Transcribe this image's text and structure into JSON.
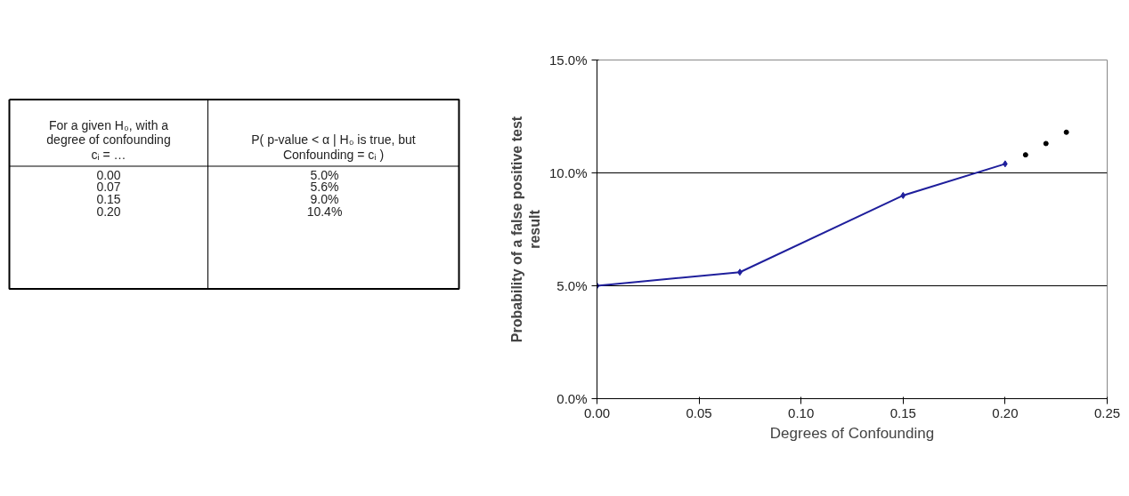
{
  "chart_data": [
    {
      "type": "other",
      "annotations": [
        "For a given H₀, with a degree of confounding cᵢ = …",
        "P( p-value < α | H₀ is true, but Confounding = cᵢ )",
        "0.00",
        "5.0%",
        "0.07",
        "5.6%",
        "0.15",
        "9.0%",
        "0.20",
        "10.4%"
      ]
    },
    {
      "type": "line",
      "xlabel": "Degrees of Confounding",
      "ylabel": "Probability of a false positive test result",
      "xlim": [
        0,
        0.25
      ],
      "xticks": [
        {
          "value": 0,
          "label": "0.00"
        },
        {
          "value": 0.05,
          "label": "0.05"
        },
        {
          "value": 0.1,
          "label": "0.10"
        },
        {
          "value": 0.15,
          "label": "0.15"
        },
        {
          "value": 0.2,
          "label": "0.20"
        },
        {
          "value": 0.25,
          "label": "0.25"
        }
      ],
      "ylim": [
        0,
        15
      ],
      "yticks": [
        {
          "value": 0,
          "label": "0.0%"
        },
        {
          "value": 5,
          "label": "5.0%"
        },
        {
          "value": 10,
          "label": "10.0%"
        },
        {
          "value": 15,
          "label": "15.0%"
        }
      ],
      "grid": "y",
      "series": [
        {
          "type": "line",
          "color": "#1f1f9c",
          "marker": "diamond",
          "x": [
            0,
            0.07,
            0.15,
            0.2
          ],
          "values": [
            5.0,
            5.6,
            9.0,
            10.4
          ]
        },
        {
          "type": "scatter",
          "color": "#000000",
          "marker": "circle",
          "x": [
            0.21,
            0.22,
            0.23
          ],
          "values": [
            10.8,
            11.3,
            11.8
          ]
        }
      ]
    }
  ]
}
